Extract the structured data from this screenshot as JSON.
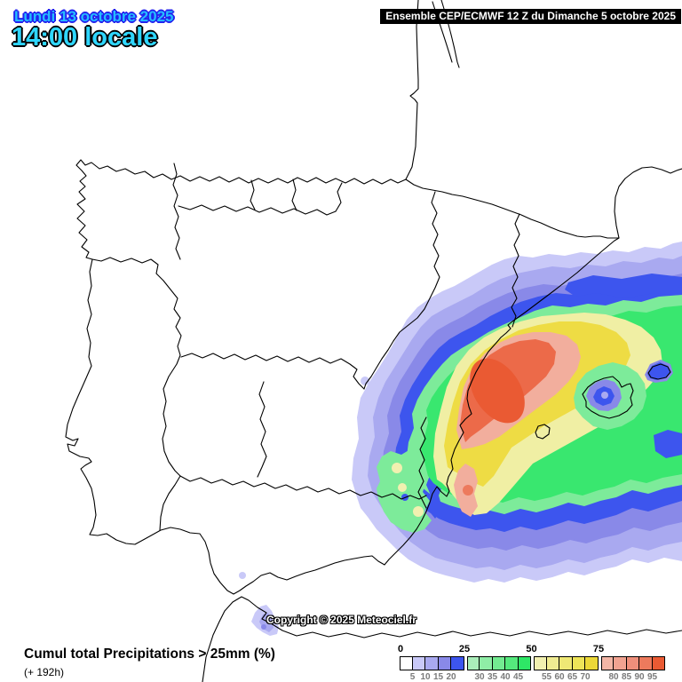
{
  "header": {
    "date_line": "Lundi 13 octobre 2025",
    "time_line": "14:00 locale",
    "model_banner": "Ensemble CEP/ECMWF 12 Z du Dimanche 5 octobre 2025"
  },
  "map": {
    "copyright": "Copyright © 2025 Meteociel.fr",
    "region": "Iberian Peninsula and western Mediterranean"
  },
  "footer": {
    "title": "Cumul total Precipitations > 25mm (%)",
    "lead_time": "(+ 192h)"
  },
  "legend": {
    "unit": "%",
    "major_ticks": [
      "0",
      "25",
      "50",
      "75"
    ],
    "groups": [
      {
        "colors": [
          "#ffffff",
          "#c9c9f8",
          "#a9a9f0",
          "#8989e8",
          "#3d55ee"
        ],
        "labels": [
          "5",
          "10",
          "15",
          "20"
        ]
      },
      {
        "colors": [
          "#aaeeba",
          "#8feda6",
          "#73eb91",
          "#55e97d",
          "#2ee766"
        ],
        "labels": [
          "30",
          "35",
          "40",
          "45"
        ]
      },
      {
        "colors": [
          "#f1f0b0",
          "#f0ec92",
          "#efe875",
          "#eee458",
          "#ecd837"
        ],
        "labels": [
          "55",
          "60",
          "65",
          "70"
        ]
      },
      {
        "colors": [
          "#f3b6a6",
          "#f1a391",
          "#ef8f7b",
          "#ed7a5d",
          "#ea5a33"
        ],
        "labels": [
          "80",
          "85",
          "90",
          "95"
        ]
      }
    ]
  },
  "palette": {
    "probability_low": "#c9c9f8",
    "probability_blue": "#3d55ee",
    "probability_green": "#55e97d",
    "probability_yellow": "#eee458",
    "probability_high": "#ea5a33",
    "coastline": "#000000",
    "text_cyan": "#25bdff",
    "banner_bg": "#000000"
  }
}
